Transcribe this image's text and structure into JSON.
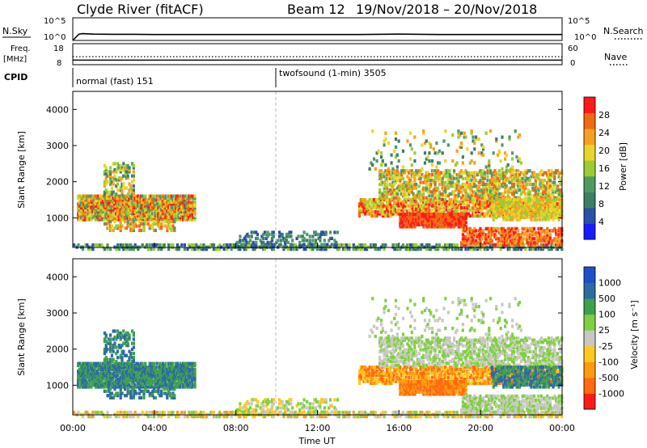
{
  "header": {
    "station": "Clyde River (fitACF)",
    "beam": "Beam 12",
    "date_range": "19/Nov/2018 – 20/Nov/2018"
  },
  "colors": {
    "power_scale": [
      "#1a1aff",
      "#2c4fa8",
      "#3c7f66",
      "#4f9a64",
      "#9acd32",
      "#e8d52b",
      "#f7a020",
      "#f06a10",
      "#ff1a1a"
    ],
    "velocity_scale": [
      "#ff1a1a",
      "#ff6a10",
      "#ff9a10",
      "#ffc820",
      "#c8c8c0",
      "#7fd040",
      "#3fa050",
      "#2c6ca0",
      "#2050c8"
    ]
  },
  "chart_data": [
    {
      "type": "line",
      "panel": "nsky-nsearch",
      "left_label": "N.Sky",
      "right_label": "N.Search",
      "left_ticks": [
        "10^5",
        "10^0"
      ],
      "right_ticks": [
        "10^5",
        "10^0"
      ],
      "x": [
        0.0,
        0.3,
        0.5,
        1,
        2,
        3,
        4,
        5,
        6,
        7,
        8,
        9,
        10,
        11,
        12,
        13,
        14,
        15,
        16,
        17,
        18,
        19,
        20,
        21,
        22,
        23,
        24
      ],
      "series": [
        {
          "values": [
            0.0,
            1.4,
            1.5,
            1.4,
            1.35,
            1.35,
            1.3,
            1.3,
            1.3,
            1.3,
            1.3,
            1.3,
            1.3,
            1.3,
            1.3,
            1.3,
            1.3,
            1.35,
            1.4,
            1.35,
            1.3,
            1.3,
            1.3,
            1.3,
            1.3,
            1.3,
            1.3
          ]
        }
      ]
    },
    {
      "type": "line",
      "panel": "freq-nave",
      "left_label": "Freq.",
      "left_label_unit": "[MHz]",
      "right_label": "Nave",
      "left_ticks": [
        "18",
        "8"
      ],
      "right_ticks": [
        "60",
        "0"
      ],
      "x": [
        0,
        4,
        8,
        12,
        16,
        20,
        24
      ],
      "series": [
        {
          "values": [
            10.2,
            10.2,
            10.2,
            10.2,
            10.2,
            10.2,
            10.2
          ]
        },
        {
          "values": [
            11.8,
            11.8,
            11.8,
            11.8,
            11.8,
            11.8,
            11.8
          ]
        }
      ]
    },
    {
      "type": "table",
      "panel": "cpid",
      "label": "CPID",
      "segments": [
        {
          "start": 0,
          "end": 10,
          "text": "normal (fast) 151"
        },
        {
          "start": 10,
          "end": 24,
          "text": "twofsound (1-min) 3505"
        }
      ]
    },
    {
      "type": "heatmap",
      "panel": "power",
      "ylabel": "Slant Range [km]",
      "yticks": [
        1000,
        2000,
        3000,
        4000
      ],
      "ylim": [
        180,
        4500
      ],
      "colorbar_label": "Power [dB]",
      "colorbar_ticks": [
        4,
        8,
        12,
        16,
        20,
        24,
        28
      ],
      "colorbar_range": [
        0,
        32
      ]
    },
    {
      "type": "heatmap",
      "panel": "velocity",
      "ylabel": "Slant Range [km]",
      "yticks": [
        1000,
        2000,
        3000,
        4000
      ],
      "ylim": [
        180,
        4500
      ],
      "xlabel": "Time UT",
      "xticks": [
        "00:00",
        "04:00",
        "08:00",
        "12:00",
        "16:00",
        "20:00",
        "00:00"
      ],
      "xlim": [
        0,
        24
      ],
      "colorbar_label": "Velocity [m s⁻¹]",
      "colorbar_ticks": [
        "1000",
        "500",
        "100",
        "25",
        "-25",
        "-100",
        "-500",
        "-1000"
      ]
    }
  ]
}
